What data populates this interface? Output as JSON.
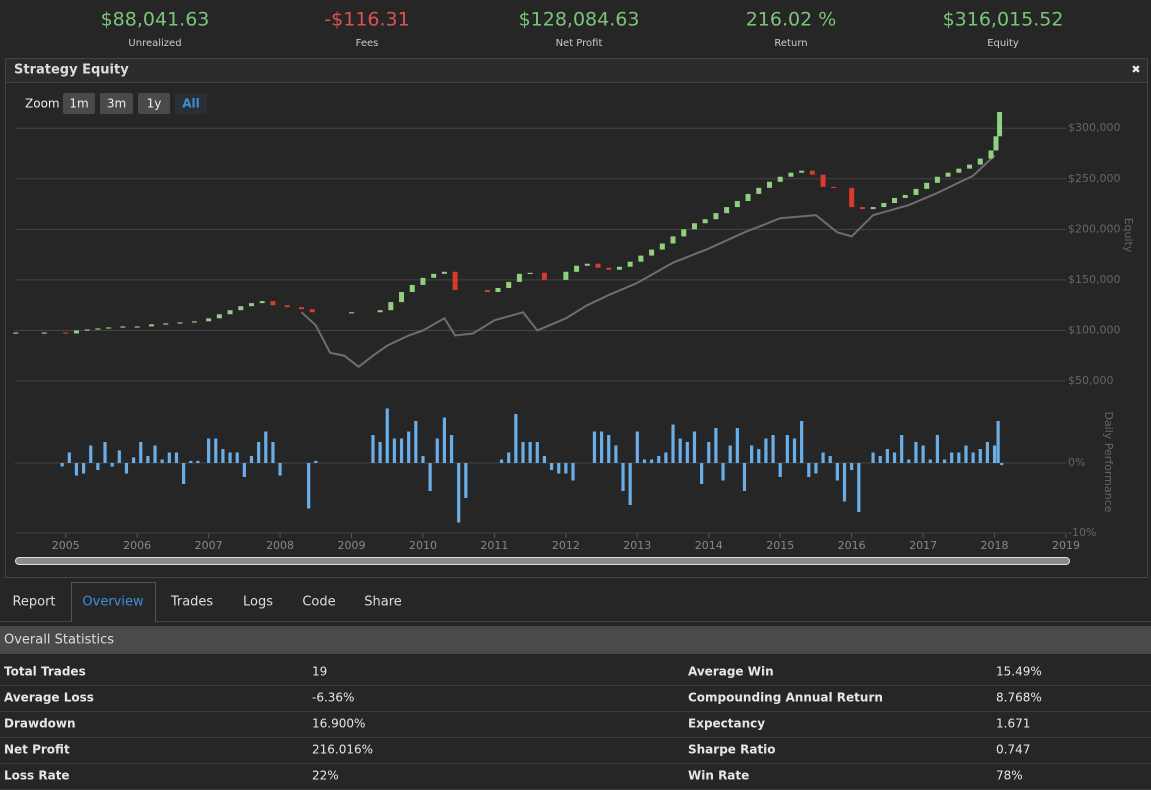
{
  "header": {
    "stats": [
      {
        "value": "$88,041.63",
        "label": "Unrealized",
        "color": "#7cc47a"
      },
      {
        "value": "-$116.31",
        "label": "Fees",
        "color": "#e05252"
      },
      {
        "value": "$128,084.63",
        "label": "Net Profit",
        "color": "#7cc47a"
      },
      {
        "value": "216.02 %",
        "label": "Return",
        "color": "#7cc47a"
      },
      {
        "value": "$316,015.52",
        "label": "Equity",
        "color": "#7cc47a"
      }
    ]
  },
  "panel": {
    "title": "Strategy Equity",
    "close": "✖",
    "zoom_label": "Zoom",
    "zoom_buttons": [
      "1m",
      "3m",
      "1y",
      "All"
    ]
  },
  "chart_data": [
    {
      "type": "candlestick",
      "y_label": "Equity",
      "up_color": "#8fd17f",
      "down_color": "#d93a2e",
      "x": [
        2004.3,
        2004.7,
        2005.0,
        2005.15,
        2005.3,
        2005.45,
        2005.6,
        2005.8,
        2006.0,
        2006.2,
        2006.4,
        2006.6,
        2006.8,
        2007.0,
        2007.15,
        2007.3,
        2007.45,
        2007.6,
        2007.75,
        2007.9,
        2008.1,
        2008.3,
        2008.45,
        2009.0,
        2009.4,
        2009.55,
        2009.7,
        2009.85,
        2010.0,
        2010.15,
        2010.3,
        2010.45,
        2010.9,
        2011.05,
        2011.2,
        2011.35,
        2011.5,
        2011.7,
        2012.0,
        2012.15,
        2012.3,
        2012.45,
        2012.6,
        2012.75,
        2012.9,
        2013.05,
        2013.2,
        2013.35,
        2013.5,
        2013.65,
        2013.8,
        2013.95,
        2014.1,
        2014.25,
        2014.4,
        2014.55,
        2014.7,
        2014.85,
        2015.0,
        2015.15,
        2015.3,
        2015.45,
        2015.6,
        2015.75,
        2016.0,
        2016.15,
        2016.3,
        2016.45,
        2016.6,
        2016.75,
        2016.9,
        2017.05,
        2017.2,
        2017.35,
        2017.5,
        2017.65,
        2017.8,
        2017.95,
        2018.02,
        2018.07
      ],
      "values": [
        98000,
        98000,
        97000,
        100000,
        101000,
        102000,
        103000,
        104000,
        104000,
        106000,
        107000,
        108000,
        109000,
        112000,
        116000,
        120000,
        124000,
        127000,
        129000,
        125000,
        123000,
        121000,
        118000,
        118000,
        120000,
        128000,
        138000,
        145000,
        152000,
        156000,
        158000,
        140000,
        138000,
        142000,
        148000,
        156000,
        157000,
        150000,
        158000,
        164000,
        166000,
        162000,
        160000,
        163000,
        168000,
        174000,
        180000,
        186000,
        193000,
        200000,
        206000,
        210000,
        216000,
        222000,
        228000,
        235000,
        241000,
        247000,
        252000,
        256000,
        258000,
        254000,
        242000,
        241000,
        222000,
        220000,
        222000,
        226000,
        231000,
        234000,
        240000,
        246000,
        252000,
        256000,
        260000,
        264000,
        270000,
        278000,
        292000,
        316000
      ],
      "line": {
        "color": "#6e6e6e",
        "x": [
          2008.3,
          2008.5,
          2008.7,
          2008.9,
          2009.1,
          2009.3,
          2009.5,
          2009.8,
          2010.0,
          2010.3,
          2010.45,
          2010.7,
          2011.0,
          2011.4,
          2011.6,
          2012.0,
          2012.3,
          2012.6,
          2013.0,
          2013.5,
          2014.0,
          2014.5,
          2015.0,
          2015.5,
          2015.8,
          2016.0,
          2016.3,
          2016.8,
          2017.2,
          2017.7,
          2018.0
        ],
        "values": [
          118000,
          105000,
          78000,
          75000,
          64000,
          75000,
          85000,
          95000,
          100000,
          112000,
          95000,
          97000,
          110000,
          118000,
          100000,
          112000,
          125000,
          135000,
          147000,
          167000,
          181000,
          197000,
          211000,
          214000,
          197000,
          193000,
          214000,
          224000,
          236000,
          253000,
          273000
        ]
      },
      "xlim": [
        2004.29,
        2019
      ],
      "ylim": [
        50000,
        318000
      ],
      "yticks": [
        {
          "value": 50000,
          "label": "$50,000"
        },
        {
          "value": 100000,
          "label": "$100,000"
        },
        {
          "value": 150000,
          "label": "$150,000"
        },
        {
          "value": 200000,
          "label": "$200,000"
        },
        {
          "value": 250000,
          "label": "$250,000"
        },
        {
          "value": 300000,
          "label": "$300,000"
        }
      ],
      "grid": true
    },
    {
      "type": "bar",
      "y_label": "Daily Performance",
      "color": "#6aaee8",
      "x": [
        2004.95,
        2005.05,
        2005.15,
        2005.25,
        2005.35,
        2005.45,
        2005.55,
        2005.65,
        2005.75,
        2005.85,
        2005.95,
        2006.05,
        2006.15,
        2006.25,
        2006.35,
        2006.45,
        2006.55,
        2006.65,
        2006.75,
        2006.85,
        2007.0,
        2007.1,
        2007.2,
        2007.3,
        2007.4,
        2007.5,
        2007.6,
        2007.7,
        2007.8,
        2007.9,
        2008.0,
        2008.4,
        2008.5,
        2009.3,
        2009.4,
        2009.5,
        2009.6,
        2009.7,
        2009.8,
        2009.9,
        2010.0,
        2010.1,
        2010.2,
        2010.3,
        2010.4,
        2010.5,
        2010.6,
        2011.1,
        2011.2,
        2011.3,
        2011.4,
        2011.5,
        2011.6,
        2011.7,
        2011.8,
        2011.9,
        2012.0,
        2012.1,
        2012.4,
        2012.5,
        2012.6,
        2012.7,
        2012.8,
        2012.9,
        2013.0,
        2013.1,
        2013.2,
        2013.3,
        2013.4,
        2013.5,
        2013.6,
        2013.7,
        2013.8,
        2013.9,
        2014.0,
        2014.1,
        2014.2,
        2014.3,
        2014.4,
        2014.5,
        2014.6,
        2014.7,
        2014.8,
        2014.9,
        2015.0,
        2015.1,
        2015.2,
        2015.3,
        2015.4,
        2015.5,
        2015.6,
        2015.7,
        2015.8,
        2015.9,
        2016.0,
        2016.1,
        2016.3,
        2016.4,
        2016.5,
        2016.6,
        2016.7,
        2016.8,
        2016.9,
        2017.0,
        2017.1,
        2017.2,
        2017.3,
        2017.4,
        2017.5,
        2017.6,
        2017.7,
        2017.8,
        2017.9,
        2018.0,
        2018.05,
        2018.1
      ],
      "values": [
        -0.5,
        1.5,
        -1.8,
        -1.5,
        2.5,
        -1,
        3,
        -0.5,
        1.8,
        -1.5,
        0.8,
        3,
        1,
        2.5,
        0.5,
        1.5,
        1.5,
        -3,
        0.3,
        0.3,
        3.5,
        3.5,
        2,
        1.5,
        1.5,
        -2,
        1,
        3,
        4.5,
        3,
        -1.8,
        -6.5,
        0.3,
        4,
        3,
        7.8,
        3.5,
        3.5,
        4.5,
        6,
        1,
        -4,
        3.5,
        6.5,
        4,
        -8.5,
        -5,
        0.5,
        1.5,
        7,
        3,
        3,
        3,
        1,
        -1,
        -1.5,
        -1.5,
        -2.5,
        4.5,
        4.5,
        4,
        2.5,
        -4,
        -6,
        4.5,
        0.5,
        0.5,
        1,
        1.5,
        5.5,
        3.5,
        3,
        4.5,
        -3,
        3,
        5,
        -2.5,
        2.5,
        5,
        -4,
        2.5,
        2,
        3.5,
        4,
        -2,
        4,
        3.5,
        6,
        -2,
        -1.5,
        1.5,
        1,
        -2.5,
        -5.5,
        -1,
        -7,
        1.5,
        1,
        2,
        1.5,
        4,
        0.5,
        3,
        2.5,
        0.5,
        4,
        0.5,
        1.5,
        1.5,
        2.5,
        1.5,
        2,
        3,
        2.5,
        6,
        -0.3
      ],
      "xlim": [
        2004.29,
        2019
      ],
      "xticks": [
        2005,
        2006,
        2007,
        2008,
        2009,
        2010,
        2011,
        2012,
        2013,
        2014,
        2015,
        2016,
        2017,
        2018,
        2019
      ],
      "ylim": [
        -10,
        10
      ],
      "yticks": [
        {
          "value": 0,
          "label": "0%"
        },
        {
          "value": -10,
          "label": "-10%"
        }
      ],
      "grid": true
    }
  ],
  "tabs": {
    "items": [
      "Report",
      "Overview",
      "Trades",
      "Logs",
      "Code",
      "Share"
    ],
    "active": 1
  },
  "statistics": {
    "title": "Overall Statistics",
    "rows": [
      [
        "Total Trades",
        "19",
        "Average Win",
        "15.49%"
      ],
      [
        "Average Loss",
        "-6.36%",
        "Compounding Annual Return",
        "8.768%"
      ],
      [
        "Drawdown",
        "16.900%",
        "Expectancy",
        "1.671"
      ],
      [
        "Net Profit",
        "216.016%",
        "Sharpe Ratio",
        "0.747"
      ],
      [
        "Loss Rate",
        "22%",
        "Win Rate",
        "78%"
      ]
    ]
  }
}
